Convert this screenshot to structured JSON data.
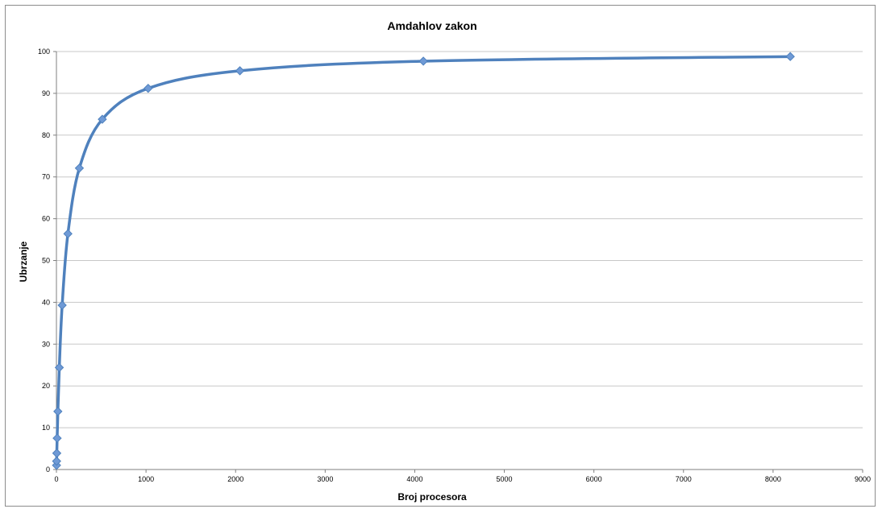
{
  "chart_data": {
    "type": "scatter",
    "title": "Amdahlov zakon",
    "xlabel": "Broj procesora",
    "ylabel": "Ubrzanje",
    "xlim": [
      0,
      9000
    ],
    "ylim": [
      0,
      100
    ],
    "xticks": [
      0,
      1000,
      2000,
      3000,
      4000,
      5000,
      6000,
      7000,
      8000,
      9000
    ],
    "yticks": [
      0,
      10,
      20,
      30,
      40,
      50,
      60,
      70,
      80,
      90,
      100
    ],
    "grid": true,
    "legend": "none",
    "series": [
      {
        "color": "#4f81bd",
        "marker_color": "#6f9ad6",
        "smooth": true,
        "points": [
          {
            "x": 1,
            "y": 1
          },
          {
            "x": 2,
            "y": 2
          },
          {
            "x": 4,
            "y": 3.9
          },
          {
            "x": 8,
            "y": 7.5
          },
          {
            "x": 16,
            "y": 13.9
          },
          {
            "x": 32,
            "y": 24.4
          },
          {
            "x": 64,
            "y": 39.3
          },
          {
            "x": 128,
            "y": 56.4
          },
          {
            "x": 256,
            "y": 72.1
          },
          {
            "x": 512,
            "y": 83.8
          },
          {
            "x": 1024,
            "y": 91.2
          },
          {
            "x": 2048,
            "y": 95.4
          },
          {
            "x": 4096,
            "y": 97.7
          },
          {
            "x": 8192,
            "y": 98.8
          }
        ]
      }
    ]
  }
}
